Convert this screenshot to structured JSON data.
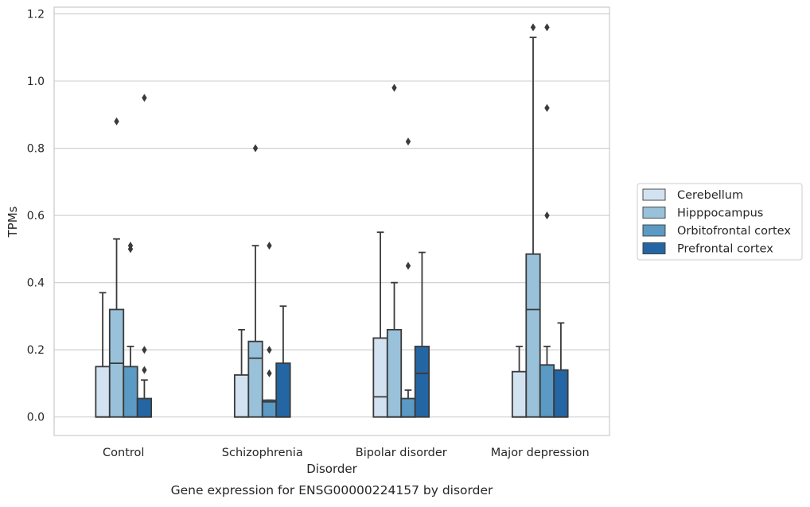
{
  "chart_data": {
    "type": "box",
    "caption": "Gene expression for ENSG00000224157 by disorder",
    "xlabel": "Disorder",
    "ylabel": "TPMs",
    "ylim": [
      -0.055,
      1.22
    ],
    "yticks": [
      0.0,
      0.2,
      0.4,
      0.6,
      0.8,
      1.0,
      1.2
    ],
    "ytick_labels": [
      "0.0",
      "0.2",
      "0.4",
      "0.6",
      "0.8",
      "1.0",
      "1.2"
    ],
    "grid": "horizontal",
    "legend_position": "right",
    "categories": [
      "Control",
      "Schizophrenia",
      "Bipolar disorder",
      "Major depression"
    ],
    "series": [
      {
        "name": "Cerebellum",
        "color": "#d2e2f1",
        "boxes": [
          {
            "whisker_low": 0.0,
            "q1": 0.0,
            "median": 0.0,
            "q3": 0.15,
            "whisker_high": 0.37,
            "outliers": []
          },
          {
            "whisker_low": 0.0,
            "q1": 0.0,
            "median": 0.0,
            "q3": 0.125,
            "whisker_high": 0.26,
            "outliers": []
          },
          {
            "whisker_low": 0.0,
            "q1": 0.0,
            "median": 0.06,
            "q3": 0.235,
            "whisker_high": 0.55,
            "outliers": []
          },
          {
            "whisker_low": 0.0,
            "q1": 0.0,
            "median": 0.0,
            "q3": 0.135,
            "whisker_high": 0.21,
            "outliers": []
          }
        ]
      },
      {
        "name": "Hipppocampus",
        "color": "#99c1da",
        "boxes": [
          {
            "whisker_low": 0.0,
            "q1": 0.0,
            "median": 0.16,
            "q3": 0.32,
            "whisker_high": 0.53,
            "outliers": [
              0.88
            ]
          },
          {
            "whisker_low": 0.0,
            "q1": 0.0,
            "median": 0.175,
            "q3": 0.225,
            "whisker_high": 0.51,
            "outliers": [
              0.8
            ]
          },
          {
            "whisker_low": 0.0,
            "q1": 0.0,
            "median": 0.0,
            "q3": 0.26,
            "whisker_high": 0.4,
            "outliers": [
              0.98
            ]
          },
          {
            "whisker_low": 0.0,
            "q1": 0.0,
            "median": 0.32,
            "q3": 0.485,
            "whisker_high": 1.13,
            "outliers": [
              1.16
            ]
          }
        ]
      },
      {
        "name": "Orbitofrontal cortex",
        "color": "#5a9ac5",
        "boxes": [
          {
            "whisker_low": 0.0,
            "q1": 0.0,
            "median": 0.0,
            "q3": 0.15,
            "whisker_high": 0.21,
            "outliers": [
              0.5,
              0.51
            ]
          },
          {
            "whisker_low": 0.0,
            "q1": 0.0,
            "median": 0.045,
            "q3": 0.05,
            "whisker_high": 0.05,
            "outliers": [
              0.13,
              0.2,
              0.51
            ]
          },
          {
            "whisker_low": 0.0,
            "q1": 0.0,
            "median": 0.0,
            "q3": 0.055,
            "whisker_high": 0.08,
            "outliers": [
              0.45,
              0.82
            ]
          },
          {
            "whisker_low": 0.0,
            "q1": 0.0,
            "median": 0.0,
            "q3": 0.155,
            "whisker_high": 0.21,
            "outliers": [
              0.6,
              0.92,
              1.16
            ]
          }
        ]
      },
      {
        "name": "Prefrontal cortex",
        "color": "#2466a3",
        "boxes": [
          {
            "whisker_low": 0.0,
            "q1": 0.0,
            "median": 0.0,
            "q3": 0.055,
            "whisker_high": 0.11,
            "outliers": [
              0.14,
              0.2,
              0.95
            ]
          },
          {
            "whisker_low": 0.0,
            "q1": 0.0,
            "median": 0.0,
            "q3": 0.16,
            "whisker_high": 0.33,
            "outliers": []
          },
          {
            "whisker_low": 0.0,
            "q1": 0.0,
            "median": 0.13,
            "q3": 0.21,
            "whisker_high": 0.49,
            "outliers": []
          },
          {
            "whisker_low": 0.0,
            "q1": 0.0,
            "median": 0.0,
            "q3": 0.14,
            "whisker_high": 0.28,
            "outliers": []
          }
        ]
      }
    ]
  }
}
